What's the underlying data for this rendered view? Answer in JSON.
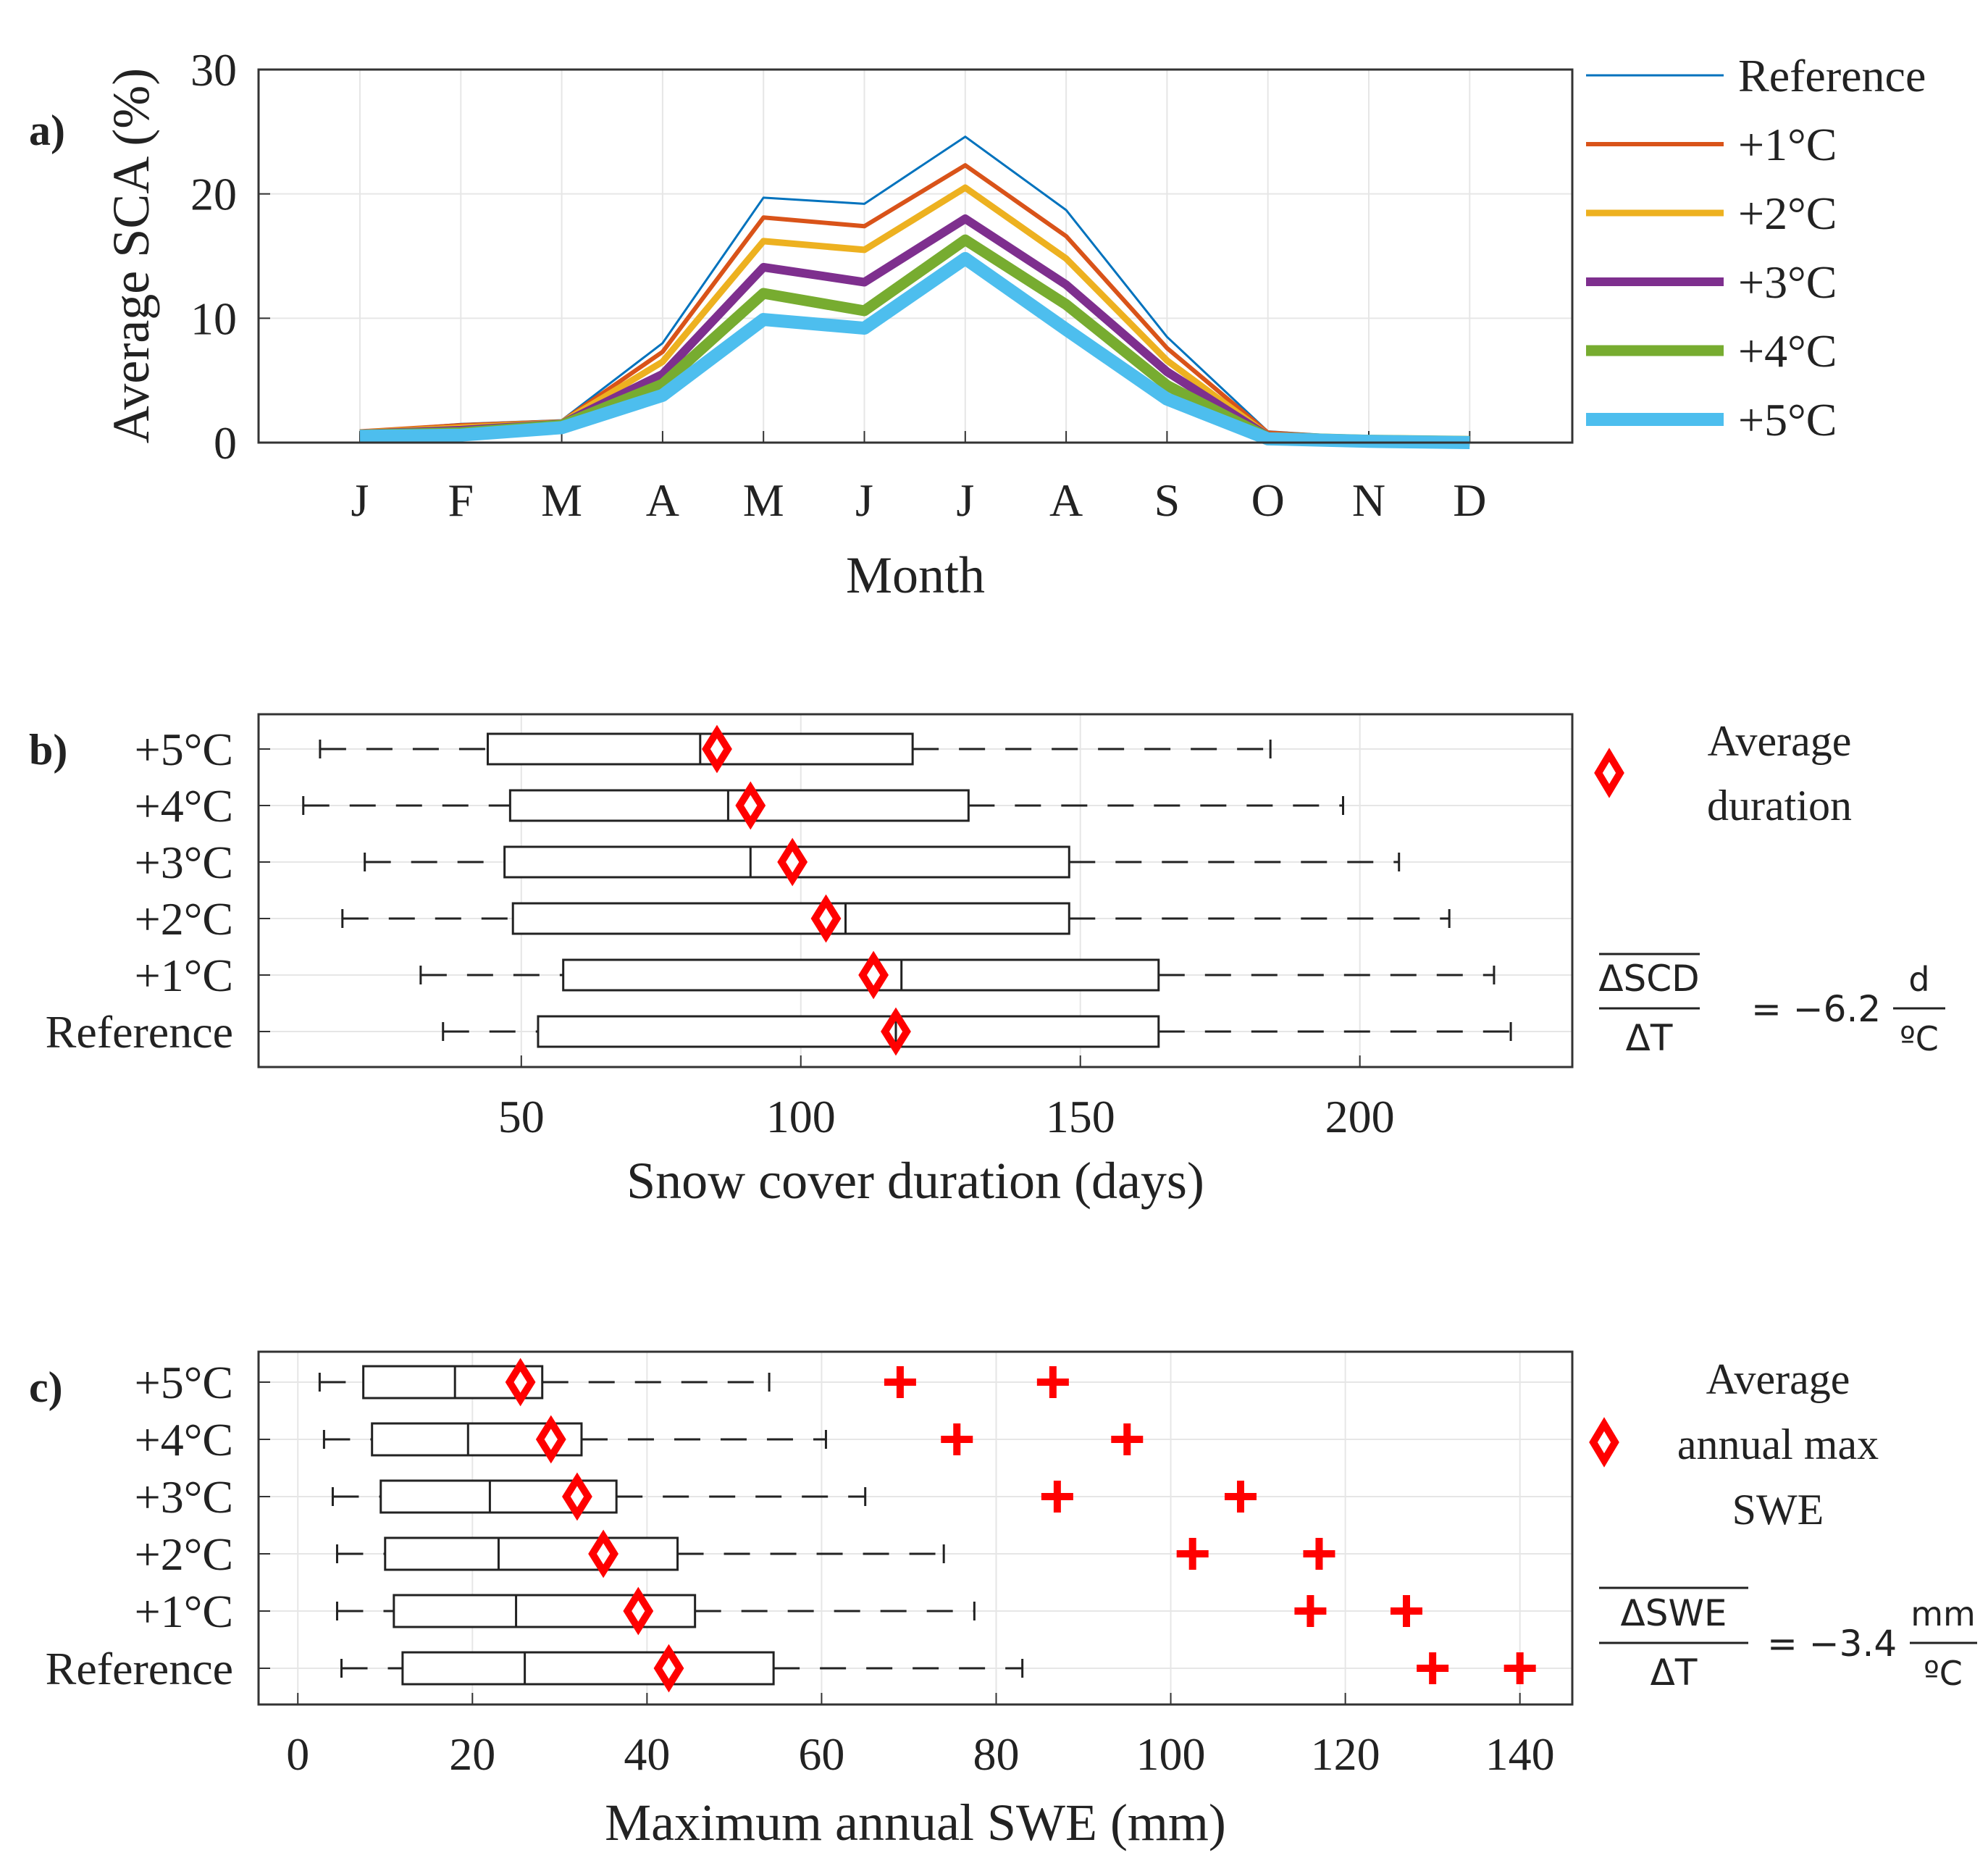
{
  "chart_data": [
    {
      "panel": "a)",
      "type": "line",
      "xlabel": "Month",
      "ylabel": "Average SCA (%)",
      "categories": [
        "J",
        "F",
        "M",
        "A",
        "M",
        "J",
        "J",
        "A",
        "S",
        "O",
        "N",
        "D"
      ],
      "ylim": [
        0,
        30
      ],
      "yticks": [
        "0",
        "10",
        "20",
        "30"
      ],
      "grid": true,
      "legend_position": "outside-right",
      "series": [
        {
          "name": "Reference",
          "color": "#0072BD",
          "values": [
            0.9,
            1.5,
            1.8,
            8.0,
            19.7,
            19.2,
            24.6,
            18.7,
            8.5,
            0.9,
            0.4,
            0.1
          ]
        },
        {
          "name": "+1°C",
          "color": "#D95319",
          "values": [
            0.9,
            1.4,
            1.7,
            7.3,
            18.1,
            17.4,
            22.3,
            16.6,
            7.6,
            0.8,
            0.3,
            0.1
          ]
        },
        {
          "name": "+2°C",
          "color": "#EDB120",
          "values": [
            0.8,
            1.2,
            1.6,
            6.5,
            16.2,
            15.5,
            20.5,
            14.8,
            6.6,
            0.6,
            0.3,
            0.1
          ]
        },
        {
          "name": "+3°C",
          "color": "#7E2F8E",
          "values": [
            0.7,
            1.0,
            1.5,
            5.5,
            14.1,
            12.9,
            18.0,
            12.7,
            5.7,
            0.5,
            0.2,
            0.1
          ]
        },
        {
          "name": "+4°C",
          "color": "#77AC30",
          "values": [
            0.6,
            0.8,
            1.4,
            4.7,
            12.0,
            10.6,
            16.3,
            11.1,
            4.6,
            0.4,
            0.2,
            0.1
          ]
        },
        {
          "name": "+5°C",
          "color": "#4DBEEE",
          "values": [
            0.5,
            0.6,
            1.2,
            3.8,
            9.9,
            9.2,
            14.8,
            9.1,
            3.5,
            0.3,
            0.1,
            0.0
          ]
        }
      ]
    },
    {
      "panel": "b)",
      "type": "box",
      "xlabel": "Snow cover duration (days)",
      "xlim": [
        3,
        238
      ],
      "xticks": [
        "50",
        "100",
        "150",
        "200"
      ],
      "grid": true,
      "legend_position": "outside-right",
      "legend_label_line1": "Average",
      "legend_label_line2": "duration",
      "equation": {
        "numerator": "ΔSCD",
        "denominator": "ΔT",
        "rhs": "= −6.2",
        "unit_top": "d",
        "unit_bottom": "ºC"
      },
      "categories": [
        "+5°C",
        "+4°C",
        "+3°C",
        "+2°C",
        "+1°C",
        "Reference"
      ],
      "boxes": [
        {
          "name": "+5°C",
          "whisker_low": 14,
          "q1": 44,
          "median": 82,
          "q3": 120,
          "whisker_high": 184,
          "mean": 85
        },
        {
          "name": "+4°C",
          "whisker_low": 11,
          "q1": 48,
          "median": 87,
          "q3": 130,
          "whisker_high": 197,
          "mean": 91
        },
        {
          "name": "+3°C",
          "whisker_low": 22,
          "q1": 47,
          "median": 91,
          "q3": 148,
          "whisker_high": 207,
          "mean": 98.5
        },
        {
          "name": "+2°C",
          "whisker_low": 18,
          "q1": 48.5,
          "median": 108,
          "q3": 148,
          "whisker_high": 216,
          "mean": 104.5
        },
        {
          "name": "+1°C",
          "whisker_low": 32,
          "q1": 57.5,
          "median": 118,
          "q3": 164,
          "whisker_high": 224,
          "mean": 113
        },
        {
          "name": "Reference",
          "whisker_low": 36,
          "q1": 53,
          "median": 117,
          "q3": 164,
          "whisker_high": 227,
          "mean": 117
        }
      ]
    },
    {
      "panel": "c)",
      "type": "box",
      "xlabel": "Maximum annual SWE (mm)",
      "xlim": [
        -4.5,
        146
      ],
      "xticks": [
        "0",
        "20",
        "40",
        "60",
        "80",
        "100",
        "120",
        "140"
      ],
      "grid": true,
      "legend_position": "outside-right",
      "legend_label_line1": "Average",
      "legend_label_line2": "annual max",
      "legend_label_line3": "SWE",
      "equation": {
        "numerator": "ΔSWE",
        "denominator": "ΔT",
        "rhs": "= −3.4",
        "unit_top": "mm",
        "unit_bottom": "ºC"
      },
      "categories": [
        "+5°C",
        "+4°C",
        "+3°C",
        "+2°C",
        "+1°C",
        "Reference"
      ],
      "boxes": [
        {
          "name": "+5°C",
          "whisker_low": 2.5,
          "q1": 7.5,
          "median": 18,
          "q3": 28,
          "whisker_high": 54,
          "mean": 25.5,
          "outliers": [
            69,
            86.5
          ]
        },
        {
          "name": "+4°C",
          "whisker_low": 3,
          "q1": 8.5,
          "median": 19.5,
          "q3": 32.5,
          "whisker_high": 60.5,
          "mean": 29,
          "outliers": [
            75.5,
            95
          ]
        },
        {
          "name": "+3°C",
          "whisker_low": 4,
          "q1": 9.5,
          "median": 22,
          "q3": 36.5,
          "whisker_high": 65,
          "mean": 32,
          "outliers": [
            87,
            108
          ]
        },
        {
          "name": "+2°C",
          "whisker_low": 4.5,
          "q1": 10,
          "median": 23,
          "q3": 43.5,
          "whisker_high": 74,
          "mean": 35,
          "outliers": [
            102.5,
            117
          ]
        },
        {
          "name": "+1°C",
          "whisker_low": 4.5,
          "q1": 11,
          "median": 25,
          "q3": 45.5,
          "whisker_high": 77.5,
          "mean": 39,
          "outliers": [
            116,
            127
          ]
        },
        {
          "name": "Reference",
          "whisker_low": 5,
          "q1": 12,
          "median": 26,
          "q3": 54.5,
          "whisker_high": 83,
          "mean": 42.5,
          "outliers": [
            130,
            140
          ]
        }
      ]
    }
  ]
}
